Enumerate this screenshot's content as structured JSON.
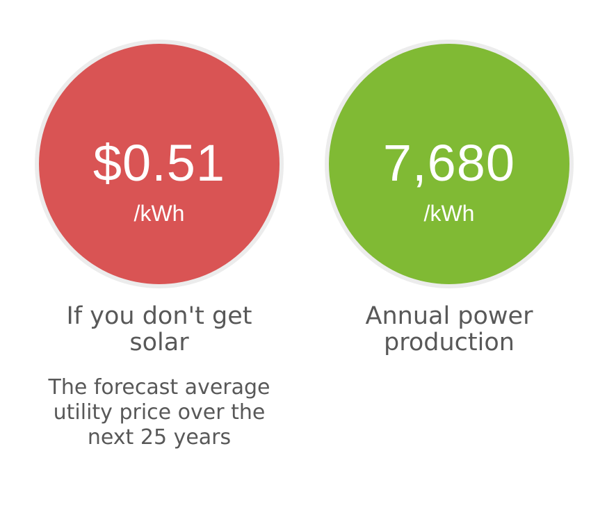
{
  "cards": [
    {
      "value": "$0.51",
      "unit": "/kWh",
      "title": "If you don't get solar",
      "description": "The forecast average utility price over the next 25 years",
      "color": "#d95454"
    },
    {
      "value": "7,680",
      "unit": "/kWh",
      "title": "Annual power production",
      "color": "#80ba34"
    }
  ]
}
